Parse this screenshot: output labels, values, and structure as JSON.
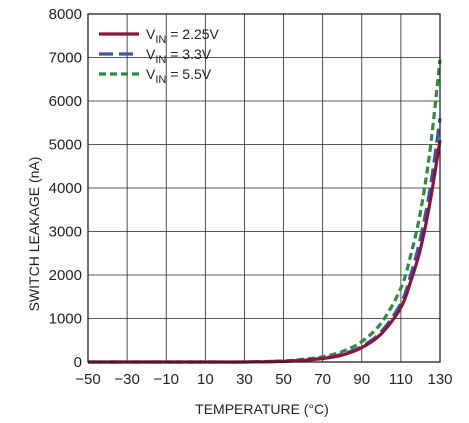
{
  "chart_data": {
    "type": "line",
    "xlabel": "TEMPERATURE (°C)",
    "ylabel": "SWITCH LEAKAGE (nA)",
    "xlim": [
      -50,
      130
    ],
    "ylim": [
      0,
      8000
    ],
    "x_ticks": [
      -50,
      -30,
      -10,
      10,
      30,
      50,
      70,
      90,
      110,
      130
    ],
    "y_ticks": [
      0,
      1000,
      2000,
      3000,
      4000,
      5000,
      6000,
      7000,
      8000
    ],
    "x_tick_labels": [
      "−50",
      "−30",
      "−10",
      "10",
      "30",
      "50",
      "70",
      "90",
      "110",
      "130"
    ],
    "y_tick_labels": [
      "0",
      "1000",
      "2000",
      "3000",
      "4000",
      "5000",
      "6000",
      "7000",
      "8000"
    ],
    "grid": true,
    "legend_position": "top-left",
    "series": [
      {
        "name_main": "V",
        "name_sub": "IN",
        "name_rest": " = 2.25V",
        "color": "#8b1538",
        "dash": "solid",
        "x": [
          -50,
          -30,
          -10,
          10,
          30,
          50,
          60,
          70,
          80,
          90,
          100,
          110,
          115,
          120,
          125,
          130
        ],
        "y": [
          0,
          0,
          0,
          0,
          0,
          15,
          40,
          80,
          160,
          330,
          650,
          1250,
          1850,
          2600,
          3700,
          5100
        ]
      },
      {
        "name_main": "V",
        "name_sub": "IN",
        "name_rest": " = 3.3V",
        "color": "#3a56a5",
        "dash": "dash",
        "x": [
          -50,
          -30,
          -10,
          10,
          30,
          50,
          60,
          70,
          80,
          90,
          100,
          110,
          115,
          120,
          125,
          130
        ],
        "y": [
          0,
          0,
          0,
          0,
          0,
          18,
          45,
          90,
          180,
          360,
          700,
          1350,
          2000,
          2850,
          4000,
          5600
        ]
      },
      {
        "name_main": "V",
        "name_sub": "IN",
        "name_rest": " = 5.5V",
        "color": "#2e8b3e",
        "dash": "shortdash",
        "x": [
          -50,
          -30,
          -10,
          10,
          30,
          50,
          60,
          70,
          80,
          90,
          100,
          110,
          115,
          120,
          125,
          130
        ],
        "y": [
          0,
          0,
          0,
          0,
          0,
          25,
          60,
          120,
          240,
          470,
          900,
          1700,
          2450,
          3450,
          4900,
          6950
        ]
      }
    ]
  }
}
